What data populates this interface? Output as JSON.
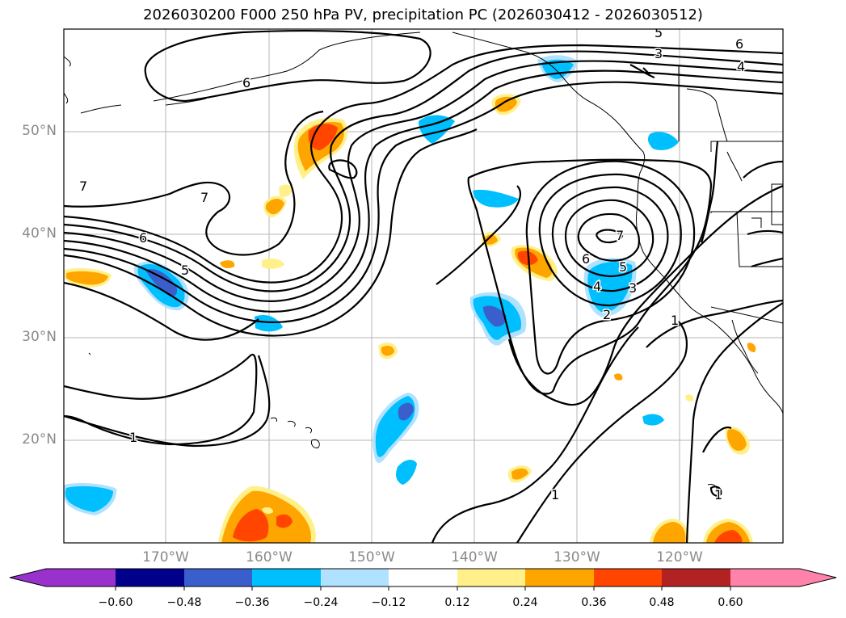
{
  "title": "2026030200 F000 250 hPa PV, precipitation PC (2026030412 - 2026030512)",
  "lat_labels": [
    "50°N",
    "40°N",
    "30°N",
    "20°N"
  ],
  "lon_labels": [
    "170°W",
    "160°W",
    "150°W",
    "140°W",
    "130°W",
    "120°W"
  ],
  "contour_labels": [
    "1",
    "1",
    "1",
    "1",
    "2",
    "3",
    "3",
    "4",
    "4",
    "5",
    "5",
    "5",
    "6",
    "6",
    "6",
    "6",
    "7",
    "7",
    "7"
  ],
  "colorbar": {
    "ticks": [
      "−0.60",
      "−0.48",
      "−0.36",
      "−0.24",
      "−0.12",
      "0.12",
      "0.24",
      "0.36",
      "0.48",
      "0.60"
    ],
    "colors": [
      "#9932cc",
      "#00008b",
      "#3a5fcd",
      "#00bfff",
      "#b0e2ff",
      "#ffffff",
      "#fff08a",
      "#ffa500",
      "#ff4500",
      "#b22222",
      "#ff82ab"
    ]
  }
}
